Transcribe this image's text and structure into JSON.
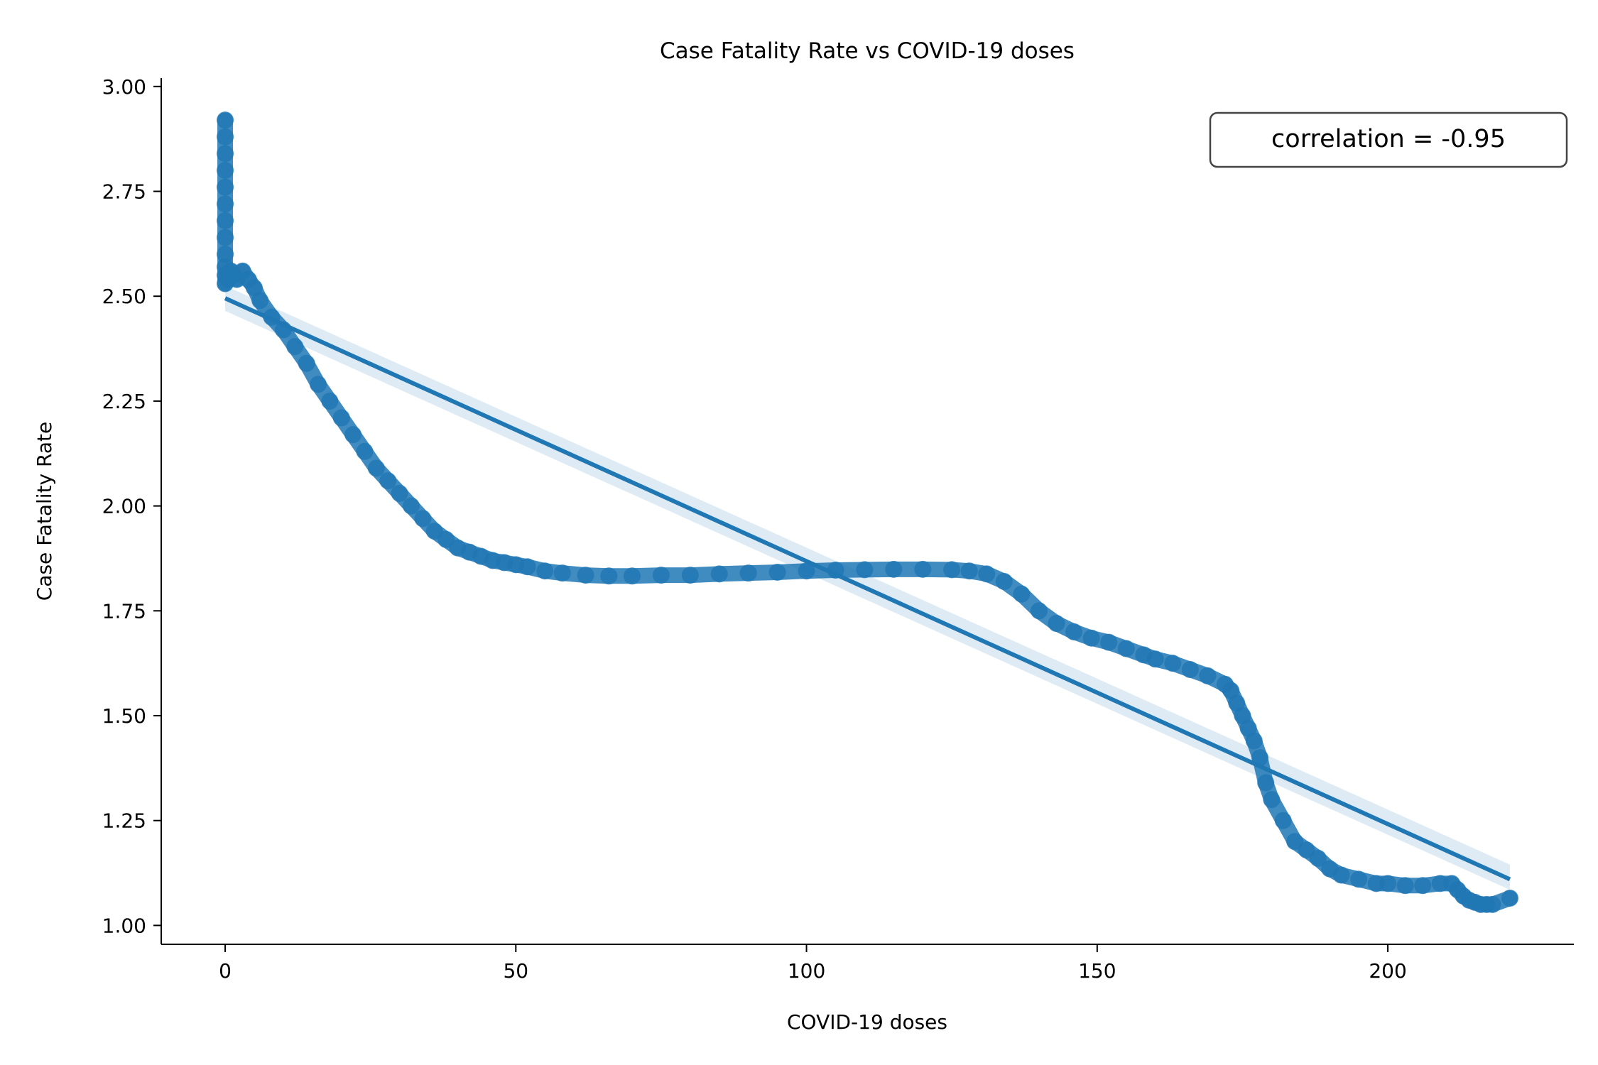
{
  "chart_data": {
    "type": "scatter",
    "title": "Case Fatality Rate vs COVID-19 doses",
    "xlabel": "COVID-19 doses",
    "ylabel": "Case Fatality Rate",
    "xlim": [
      -11,
      232
    ],
    "ylim": [
      0.955,
      3.02
    ],
    "xticks": [
      0,
      50,
      100,
      150,
      200
    ],
    "yticks": [
      1.0,
      1.25,
      1.5,
      1.75,
      2.0,
      2.25,
      2.5,
      2.75,
      3.0
    ],
    "xtick_labels": [
      "0",
      "50",
      "100",
      "150",
      "200"
    ],
    "ytick_labels": [
      "1.00",
      "1.25",
      "1.50",
      "1.75",
      "2.00",
      "2.25",
      "2.50",
      "2.75",
      "3.00"
    ],
    "grid": false,
    "annotation": "correlation = -0.95",
    "annotation_position": "top-right",
    "color": "#1f77b4",
    "series": [
      {
        "kind": "points",
        "x": [
          0,
          0,
          0,
          0,
          0,
          0,
          0,
          0,
          0,
          0,
          0,
          0,
          0.5,
          0.5,
          1,
          1.5,
          2,
          3,
          4,
          5,
          6,
          8,
          10,
          12,
          14,
          16,
          18,
          20,
          22,
          24,
          26,
          28,
          30,
          32,
          34,
          36,
          38,
          40,
          42,
          44,
          46,
          48,
          50,
          52,
          55,
          58,
          62,
          66,
          70,
          75,
          80,
          85,
          90,
          95,
          100,
          105,
          110,
          115,
          120,
          125,
          128,
          131,
          134,
          137,
          140,
          143,
          146,
          149,
          152,
          155,
          158,
          160,
          163,
          166,
          169,
          172,
          173,
          174,
          175,
          176,
          177,
          178,
          179,
          180,
          182,
          184,
          186,
          188,
          190,
          192,
          195,
          198,
          200,
          203,
          206,
          209,
          211,
          212,
          213,
          214,
          215,
          216,
          217,
          218,
          221
        ],
        "y": [
          2.92,
          2.88,
          2.84,
          2.8,
          2.76,
          2.72,
          2.68,
          2.64,
          2.6,
          2.57,
          2.55,
          2.53,
          2.54,
          2.55,
          2.56,
          2.55,
          2.54,
          2.56,
          2.54,
          2.52,
          2.49,
          2.45,
          2.42,
          2.38,
          2.34,
          2.29,
          2.25,
          2.21,
          2.17,
          2.13,
          2.09,
          2.06,
          2.03,
          2.0,
          1.97,
          1.94,
          1.92,
          1.9,
          1.89,
          1.88,
          1.87,
          1.865,
          1.86,
          1.855,
          1.845,
          1.84,
          1.835,
          1.833,
          1.833,
          1.835,
          1.835,
          1.838,
          1.84,
          1.842,
          1.845,
          1.847,
          1.848,
          1.849,
          1.849,
          1.848,
          1.845,
          1.838,
          1.82,
          1.79,
          1.75,
          1.72,
          1.7,
          1.685,
          1.675,
          1.66,
          1.645,
          1.635,
          1.625,
          1.61,
          1.595,
          1.575,
          1.56,
          1.53,
          1.5,
          1.47,
          1.44,
          1.4,
          1.34,
          1.3,
          1.25,
          1.2,
          1.18,
          1.16,
          1.135,
          1.12,
          1.11,
          1.1,
          1.1,
          1.095,
          1.095,
          1.1,
          1.1,
          1.085,
          1.07,
          1.06,
          1.055,
          1.05,
          1.05,
          1.05,
          1.065
        ]
      },
      {
        "kind": "regression-line",
        "x": [
          0,
          221
        ],
        "y": [
          2.495,
          1.11
        ]
      }
    ]
  }
}
